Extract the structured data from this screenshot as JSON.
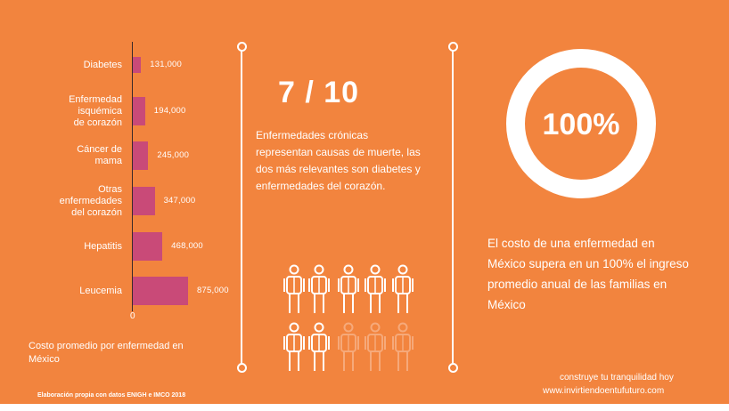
{
  "chart_data": {
    "type": "bar",
    "orientation": "horizontal",
    "categories": [
      "Diabetes",
      "Enfermedad\nisquémica\nde corazón",
      "Cáncer de\nmama",
      "Otras\nenfermedades\ndel corazón",
      "Hepatitis",
      "Leucemia"
    ],
    "values": [
      131000,
      194000,
      245000,
      347000,
      468000,
      875000
    ],
    "value_labels": [
      "131,000",
      "194,000",
      "245,000",
      "347,000",
      "468,000",
      "875,000"
    ],
    "zero_label": "0",
    "xlim": [
      0,
      875000
    ],
    "caption": "Costo promedio por enfermedad en México",
    "bar_color": "#c94a78"
  },
  "stat": {
    "fraction": "7 / 10",
    "text": "Enfermedades crónicas representan causas de muerte, las dos más relevantes son diabetes y enfermedades del corazón.",
    "icons_total": 10,
    "icons_highlighted": 7
  },
  "ring": {
    "label": "100%",
    "text": "El costo de una enfermedad en México supera en un 100% el ingreso promedio anual de las familias en México"
  },
  "footer": {
    "tagline": "construye tu tranquilidad hoy",
    "url": "www.invirtiendoentufuturo.com",
    "source": "Elaboración propia con datos ENIGH e IMCO  2018"
  },
  "colors": {
    "background": "#f2843e",
    "bars": "#c94a78",
    "icon_dim": "#f6a97a",
    "text": "#ffffff"
  }
}
